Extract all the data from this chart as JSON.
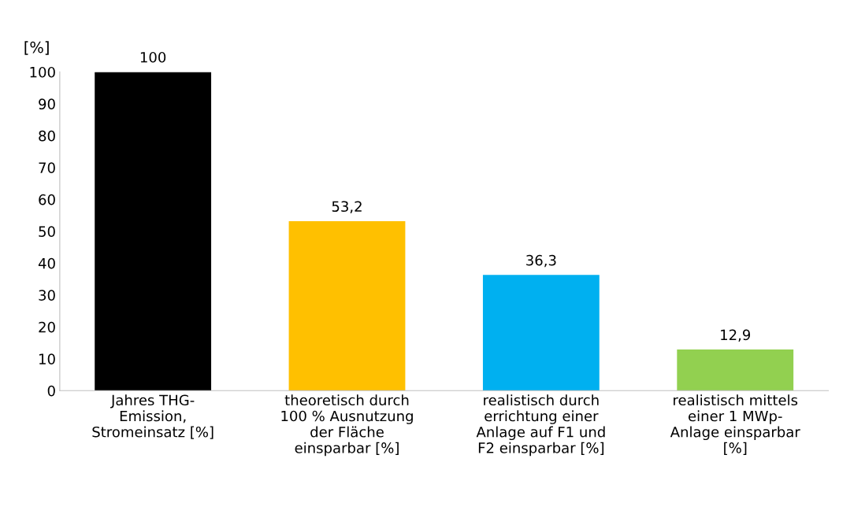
{
  "chart_data": {
    "type": "bar",
    "ylabel": "[%]",
    "categories": [
      "Jahres THG-\nEmission,\nStromeinsatz [%]",
      "theoretisch durch\n100 % Ausnutzung\nder Fläche\neinsparbar [%]",
      "realistisch durch\nerrichtung einer\nAnlage auf F1 und\nF2 einsparbar [%]",
      "realistisch mittels\neiner 1 MWp-\nAnlage einsparbar\n[%]"
    ],
    "values": [
      100,
      53.2,
      36.3,
      12.9
    ],
    "colors": [
      "#000000",
      "#ffc000",
      "#00b0f0",
      "#92d050"
    ],
    "value_labels": [
      "100",
      "53,2",
      "36,3",
      "12,9"
    ],
    "ylim": [
      0,
      100
    ],
    "yticks": [
      0,
      10,
      20,
      30,
      40,
      50,
      60,
      70,
      80,
      90,
      100
    ],
    "grid": false
  }
}
